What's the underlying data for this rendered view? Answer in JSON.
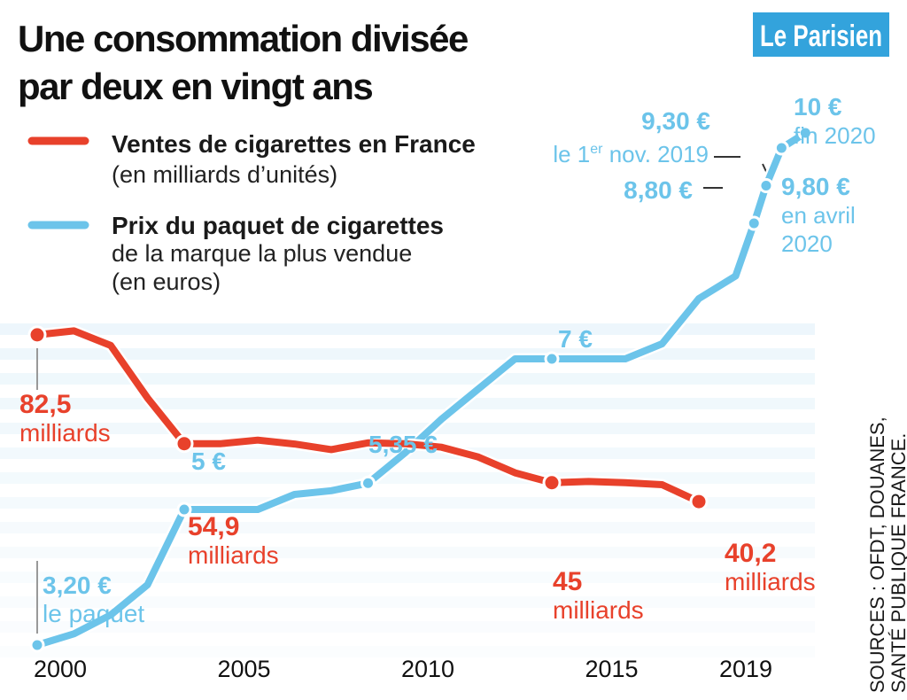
{
  "title_line1": "Une consommation divisée",
  "title_line2": "par deux en vingt ans",
  "logo": "Le Parisien",
  "source_line1": "SOURCES : OFDT, DOUANES,",
  "source_line2": "SANTÉ PUBLIQUE FRANCE.",
  "colors": {
    "red": "#e8412b",
    "blue": "#6cc4ea",
    "stripe": "#eaf5fb",
    "logo_bg": "#33a3dc"
  },
  "chart_data": {
    "type": "line",
    "title": "Une consommation divisée par deux en vingt ans",
    "x_ticks": [
      "2000",
      "2005",
      "2010",
      "2015",
      "2019"
    ],
    "xlim": [
      2000,
      2020.3
    ],
    "series": [
      {
        "name": "Ventes de cigarettes en France",
        "name_detail": "(en milliards d’unités)",
        "color": "#e8412b",
        "unit": "milliards",
        "x": [
          2000,
          2001,
          2002,
          2003,
          2004,
          2005,
          2006,
          2007,
          2008,
          2009,
          2010,
          2011,
          2012,
          2013,
          2014,
          2015,
          2016,
          2017,
          2018
        ],
        "y": [
          82.5,
          83.5,
          79.8,
          66.5,
          54.9,
          54.9,
          55.8,
          54.8,
          53.4,
          55.1,
          54.9,
          54.0,
          51.5,
          47.5,
          45.0,
          45.3,
          45.0,
          44.5,
          40.2
        ],
        "ylim": [
          0,
          100
        ],
        "labels": [
          {
            "x": 2000,
            "value": "82,5",
            "unit": "milliards"
          },
          {
            "x": 2004,
            "value": "54,9",
            "unit": "milliards"
          },
          {
            "x": 2014,
            "value": "45",
            "unit": "milliards"
          },
          {
            "x": 2018,
            "value": "40,2",
            "unit": "milliards"
          }
        ]
      },
      {
        "name": "Prix du paquet de cigarettes",
        "name_detail_line1": "de la marque la plus vendue",
        "name_detail_line2": "(en euros)",
        "color": "#6cc4ea",
        "unit": "€",
        "x": [
          2000,
          2001,
          2002,
          2003,
          2004,
          2005,
          2006,
          2007,
          2008,
          2009,
          2010,
          2011,
          2012,
          2013,
          2014,
          2015,
          2016,
          2017,
          2018,
          2019,
          2019.5,
          2019.83,
          2020.25,
          2020.9
        ],
        "y": [
          3.2,
          3.35,
          3.6,
          4.0,
          5.0,
          5.0,
          5.0,
          5.2,
          5.25,
          5.35,
          5.75,
          6.2,
          6.6,
          7.0,
          7.0,
          7.0,
          7.0,
          7.2,
          7.8,
          8.1,
          8.8,
          9.3,
          9.8,
          10.0
        ],
        "ylim": [
          0,
          10.8
        ],
        "labels": [
          {
            "x": 2000,
            "value": "3,20 €",
            "detail": "le paquet"
          },
          {
            "x": 2004,
            "value": "5 €"
          },
          {
            "x": 2009,
            "value": "5,35 €"
          },
          {
            "x": 2014,
            "value": "7 €"
          },
          {
            "x": 2019.5,
            "value": "8,80 €"
          },
          {
            "x": 2019.83,
            "value": "9,30 €",
            "detail_prefix": "le 1",
            "detail_sup": "er",
            "detail_suffix": " nov. 2019"
          },
          {
            "x": 2020.25,
            "value": "9,80 €",
            "detail_line1": "en avril",
            "detail_line2": "2020"
          },
          {
            "x": 2020.9,
            "value": "10 €",
            "detail": "fin 2020"
          }
        ]
      }
    ]
  }
}
